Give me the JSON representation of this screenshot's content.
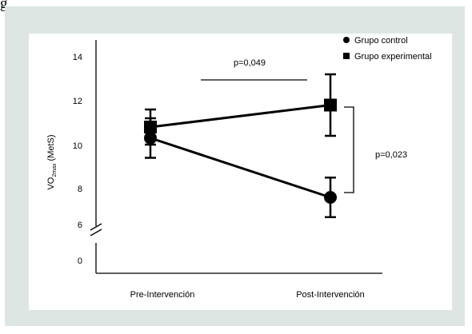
{
  "figure_label": "g",
  "colors": {
    "background": "#dde6e3",
    "panel": "#ffffff",
    "ink": "#000000"
  },
  "chart_data": {
    "type": "line",
    "title": "",
    "xlabel": "",
    "ylabel": {
      "base": "VO",
      "subscript": "2max",
      "unit": "(MetS)"
    },
    "categories": [
      "Pre-Intervención",
      "Post-Intervención"
    ],
    "y_ticks": [
      "14",
      "12",
      "10",
      "8",
      "6",
      "0"
    ],
    "y_ticks_upper": [
      14,
      12,
      10,
      8,
      6
    ],
    "y_break": {
      "lower_tick": 0,
      "upper_start": 6
    },
    "legend_position": "top-right",
    "grid": false,
    "series": [
      {
        "name": "Grupo control",
        "marker": "circle",
        "values": [
          10.3,
          7.6
        ],
        "error": [
          0.9,
          0.9
        ]
      },
      {
        "name": "Grupo experimental",
        "marker": "square",
        "values": [
          10.8,
          11.8
        ],
        "error": [
          0.8,
          1.4
        ]
      }
    ],
    "annotations": [
      {
        "text": "p=0,049",
        "between": "series",
        "at": "top"
      },
      {
        "text": "p=0,023",
        "between": "groups",
        "at": "Post-Intervención"
      }
    ]
  }
}
